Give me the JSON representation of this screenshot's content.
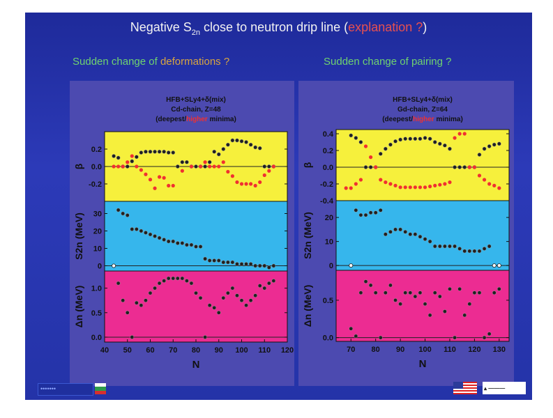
{
  "slide": {
    "title_prefix": "Negative S",
    "title_sub": "2n",
    "title_mid": " close to neutron drip line (",
    "title_highlight": "explanation ?",
    "title_suffix": ")",
    "left_heading_prefix": "Sudden change of ",
    "left_heading_highlight": "deformations ?",
    "right_heading": "Sudden change of pairing ?"
  },
  "colors": {
    "beta_panel": "#f6f03c",
    "s2n_panel": "#36b6ec",
    "gap_panel": "#ec2c92",
    "deepest": "#202020",
    "higher": "#f03030",
    "slide_background": "#2838b0"
  },
  "icons": [
    "bulgaria-flag-icon",
    "usa-flag-icon",
    "ut-battelle-logo"
  ],
  "chart_data": [
    {
      "type": "scatter",
      "title_lines": [
        "HFB+SLy4+δ(mix)",
        "Cd-chain, Z=48"
      ],
      "minima_note": {
        "open": "(deepest/",
        "highlight": "higher",
        "close": " minima)"
      },
      "xlabel": "N",
      "xlim": [
        40,
        120
      ],
      "xticks": [
        40,
        50,
        60,
        70,
        80,
        90,
        100,
        110,
        120
      ],
      "subplots": [
        {
          "ylabel": "β",
          "ylim": [
            -0.4,
            0.4
          ],
          "yticks": [
            -0.2,
            0.0,
            0.2
          ],
          "series": [
            {
              "key": "deepest",
              "x": [
                44,
                46,
                48,
                50,
                52,
                54,
                56,
                58,
                60,
                62,
                64,
                66,
                68,
                70,
                72,
                74,
                76,
                78,
                80,
                82,
                84,
                86,
                88,
                90,
                92,
                94,
                96,
                98,
                100,
                102,
                104,
                106,
                108,
                110,
                112,
                114
              ],
              "y": [
                0.12,
                0.1,
                0.0,
                0.0,
                0.06,
                0.11,
                0.16,
                0.17,
                0.17,
                0.17,
                0.17,
                0.17,
                0.16,
                0.16,
                0.0,
                0.05,
                0.05,
                0.0,
                0.0,
                0.0,
                0.0,
                0.05,
                0.17,
                0.14,
                0.2,
                0.25,
                0.3,
                0.3,
                0.29,
                0.28,
                0.25,
                0.22,
                0.21,
                0.0,
                0.0,
                0.0
              ]
            },
            {
              "key": "higher",
              "x": [
                44,
                46,
                48,
                50,
                52,
                54,
                56,
                58,
                60,
                62,
                64,
                66,
                68,
                70,
                74,
                78,
                82,
                84,
                86,
                88,
                90,
                92,
                94,
                96,
                98,
                100,
                102,
                104,
                106,
                108,
                110,
                112,
                114
              ],
              "y": [
                0.0,
                0.0,
                0.0,
                0.05,
                0.12,
                0.0,
                -0.04,
                -0.09,
                -0.15,
                -0.25,
                -0.12,
                -0.13,
                -0.22,
                -0.22,
                -0.05,
                0.0,
                0.0,
                0.05,
                0.0,
                0.0,
                0.0,
                0.05,
                -0.06,
                -0.11,
                -0.18,
                -0.2,
                -0.2,
                -0.2,
                -0.22,
                -0.18,
                -0.1,
                -0.05,
                0.0
              ]
            }
          ]
        },
        {
          "ylabel": "S2n (MeV)",
          "ylim": [
            -3,
            37
          ],
          "yticks": [
            0,
            10,
            20,
            30
          ],
          "series": [
            {
              "key": "deepest",
              "x": [
                46,
                48,
                50,
                52,
                54,
                56,
                58,
                60,
                62,
                64,
                66,
                68,
                70,
                72,
                74,
                76,
                78,
                80,
                82,
                84,
                86,
                88,
                90,
                92,
                94,
                96,
                98,
                100,
                102,
                104,
                106,
                108,
                110,
                112,
                114
              ],
              "y": [
                32,
                30,
                29,
                21,
                21,
                20,
                19,
                18,
                17,
                16,
                15,
                14,
                14,
                13,
                13,
                12,
                12,
                11,
                11,
                4,
                3,
                3,
                3,
                2,
                2,
                2,
                1,
                1,
                1,
                1,
                0,
                0,
                0,
                -1,
                0
              ]
            },
            {
              "key": "open",
              "x": [
                44
              ],
              "y": [
                0
              ]
            }
          ]
        },
        {
          "ylabel": "Δn (MeV)",
          "ylim": [
            -0.1,
            1.35
          ],
          "yticks": [
            0.0,
            0.5,
            1.0
          ],
          "series": [
            {
              "key": "deepest",
              "x": [
                46,
                48,
                50,
                52,
                54,
                56,
                58,
                60,
                62,
                64,
                66,
                68,
                70,
                72,
                74,
                76,
                78,
                80,
                82,
                84,
                86,
                88,
                90,
                92,
                94,
                96,
                98,
                100,
                102,
                104,
                106,
                108,
                110,
                112,
                114
              ],
              "y": [
                1.1,
                0.75,
                0.5,
                0.0,
                0.7,
                0.65,
                0.75,
                0.9,
                1.0,
                1.1,
                1.15,
                1.2,
                1.2,
                1.2,
                1.2,
                1.15,
                1.1,
                0.9,
                0.8,
                0.0,
                0.65,
                0.6,
                0.5,
                0.8,
                0.9,
                1.0,
                0.85,
                0.75,
                0.65,
                0.75,
                0.85,
                1.05,
                1.0,
                1.1,
                1.15
              ]
            }
          ]
        }
      ]
    },
    {
      "type": "scatter",
      "title_lines": [
        "HFB+SLy4+δ(mix)",
        "Gd-chain, Z=64"
      ],
      "minima_note": {
        "open": "(deepest/",
        "highlight": "higher",
        "close": " minima)"
      },
      "xlabel": "N",
      "xlim": [
        64,
        134
      ],
      "xticks": [
        70,
        80,
        90,
        100,
        110,
        120,
        130
      ],
      "subplots": [
        {
          "ylabel": "β",
          "ylim": [
            -0.4,
            0.45
          ],
          "yticks": [
            -0.4,
            -0.2,
            0.0,
            0.2,
            0.4
          ],
          "series": [
            {
              "key": "deepest",
              "x": [
                70,
                72,
                74,
                76,
                78,
                80,
                82,
                84,
                86,
                88,
                90,
                92,
                94,
                96,
                98,
                100,
                102,
                104,
                106,
                108,
                110,
                112,
                114,
                116,
                118,
                120,
                122,
                124,
                126,
                128,
                130
              ],
              "y": [
                0.38,
                0.35,
                0.3,
                0.0,
                0.0,
                0.0,
                0.16,
                0.22,
                0.27,
                0.31,
                0.33,
                0.34,
                0.34,
                0.34,
                0.34,
                0.35,
                0.34,
                0.3,
                0.28,
                0.26,
                0.22,
                0.0,
                0.0,
                0.0,
                0.0,
                0.0,
                0.15,
                0.22,
                0.25,
                0.27,
                0.28
              ]
            },
            {
              "key": "higher",
              "x": [
                68,
                70,
                72,
                74,
                76,
                78,
                80,
                82,
                84,
                86,
                88,
                90,
                92,
                94,
                96,
                98,
                100,
                102,
                104,
                106,
                108,
                110,
                112,
                114,
                116,
                118,
                120,
                122,
                124,
                126,
                128,
                130
              ],
              "y": [
                -0.25,
                -0.25,
                -0.2,
                -0.15,
                0.25,
                0.12,
                0.0,
                -0.15,
                -0.18,
                -0.2,
                -0.22,
                -0.24,
                -0.24,
                -0.24,
                -0.24,
                -0.24,
                -0.24,
                -0.23,
                -0.22,
                -0.21,
                -0.2,
                -0.18,
                0.35,
                0.4,
                0.4,
                0.0,
                0.0,
                -0.1,
                -0.15,
                -0.2,
                -0.22,
                -0.25
              ]
            }
          ]
        },
        {
          "ylabel": "S2n (MeV)",
          "ylim": [
            -2,
            27
          ],
          "yticks": [
            0,
            10,
            20
          ],
          "series": [
            {
              "key": "deepest",
              "x": [
                72,
                74,
                76,
                78,
                80,
                82,
                84,
                86,
                88,
                90,
                92,
                94,
                96,
                98,
                100,
                102,
                104,
                106,
                108,
                110,
                112,
                114,
                116,
                118,
                120,
                122,
                124,
                126
              ],
              "y": [
                23,
                21,
                21,
                22,
                22,
                23,
                13,
                14,
                15,
                15,
                14,
                13,
                13,
                12,
                11,
                10,
                8,
                8,
                8,
                8,
                8,
                7,
                6,
                6,
                6,
                6,
                7,
                8
              ]
            },
            {
              "key": "open",
              "x": [
                70,
                128,
                130
              ],
              "y": [
                0,
                0,
                0
              ]
            }
          ]
        },
        {
          "ylabel": "Δn (MeV)",
          "ylim": [
            -0.05,
            0.9
          ],
          "yticks": [
            0.0,
            0.5
          ],
          "series": [
            {
              "key": "deepest",
              "x": [
                70,
                72,
                74,
                76,
                78,
                80,
                82,
                84,
                86,
                88,
                90,
                92,
                94,
                96,
                98,
                100,
                102,
                104,
                106,
                108,
                110,
                112,
                114,
                116,
                118,
                120,
                122,
                124,
                126,
                128,
                130
              ],
              "y": [
                0.12,
                0.02,
                0.6,
                0.75,
                0.7,
                0.6,
                0.0,
                0.6,
                0.7,
                0.5,
                0.45,
                0.6,
                0.6,
                0.55,
                0.6,
                0.45,
                0.3,
                0.6,
                0.55,
                0.35,
                0.65,
                0.0,
                0.65,
                0.3,
                0.45,
                0.6,
                0.6,
                0.0,
                0.05,
                0.6,
                0.65
              ]
            }
          ]
        }
      ]
    }
  ]
}
